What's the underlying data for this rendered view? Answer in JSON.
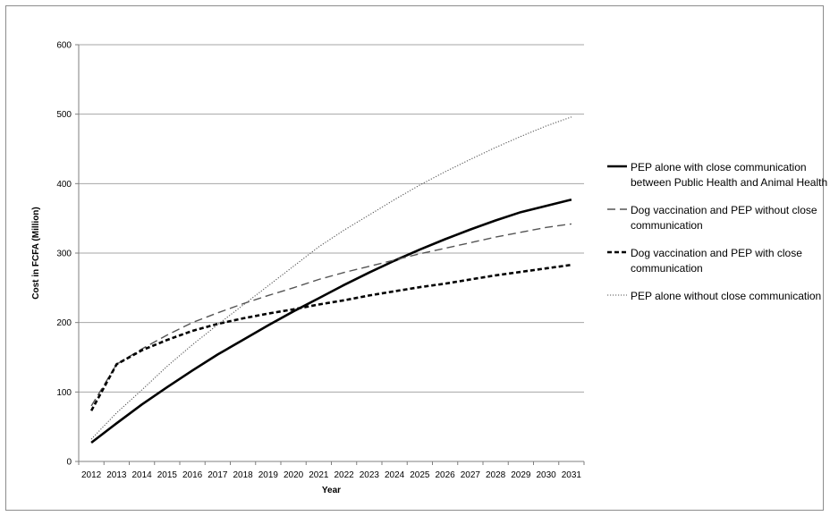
{
  "chart_data": {
    "type": "line",
    "title": "",
    "xlabel": "Year",
    "ylabel": "Cost in FCFA (Million)",
    "ylim": [
      0,
      600
    ],
    "yticks": [
      0,
      100,
      200,
      300,
      400,
      500,
      600
    ],
    "grid": true,
    "legend_position": "right",
    "x": [
      "2012",
      "2013",
      "2014",
      "2015",
      "2016",
      "2017",
      "2018",
      "2019",
      "2020",
      "2021",
      "2022",
      "2023",
      "2024",
      "2025",
      "2026",
      "2027",
      "2028",
      "2029",
      "2030",
      "2031"
    ],
    "series": [
      {
        "name": "PEP alone with close communication between Public Health and Animal Health",
        "style": "solid",
        "color": "#000000",
        "values": [
          27,
          55,
          82,
          107,
          131,
          154,
          175,
          196,
          216,
          235,
          254,
          272,
          289,
          305,
          320,
          334,
          347,
          359,
          368,
          377
        ]
      },
      {
        "name": "Dog vaccination and PEP without close communication",
        "style": "dashed",
        "color": "#555555",
        "values": [
          80,
          140,
          162,
          182,
          200,
          214,
          227,
          239,
          250,
          262,
          272,
          281,
          290,
          299,
          307,
          315,
          323,
          330,
          337,
          342
        ]
      },
      {
        "name": "Dog vaccination and PEP with close communication",
        "style": "short-dashed",
        "color": "#000000",
        "values": [
          73,
          140,
          160,
          175,
          188,
          198,
          206,
          213,
          219,
          226,
          232,
          239,
          245,
          251,
          256,
          262,
          268,
          273,
          278,
          283
        ]
      },
      {
        "name": "PEP alone without close communication",
        "style": "dotted",
        "color": "#555555",
        "values": [
          32,
          70,
          103,
          137,
          168,
          197,
          225,
          253,
          281,
          309,
          333,
          355,
          377,
          398,
          417,
          435,
          452,
          468,
          483,
          496
        ]
      }
    ]
  }
}
